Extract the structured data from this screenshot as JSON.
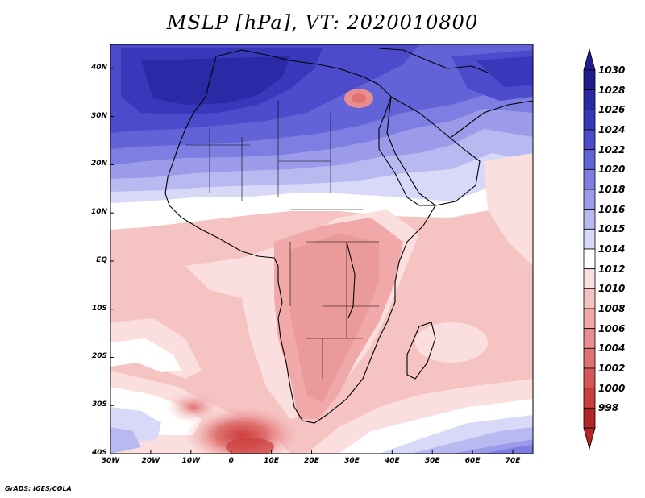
{
  "title": "MSLP [hPa], VT: 2020010800",
  "credit": "GrADS: IGES/COLA",
  "map": {
    "x_ticks": [
      "30W",
      "20W",
      "10W",
      "0",
      "10E",
      "20E",
      "30E",
      "40E",
      "50E",
      "60E",
      "70E"
    ],
    "y_ticks": [
      "40N",
      "30N",
      "20N",
      "10N",
      "EQ",
      "10S",
      "20S",
      "30S",
      "40S"
    ],
    "extent": {
      "lon": [
        -30,
        75
      ],
      "lat": [
        -40,
        45
      ]
    }
  },
  "colorbar": {
    "levels": [
      {
        "label": "1030",
        "color": "#1e1e8c"
      },
      {
        "label": "1028",
        "color": "#2a2aa6"
      },
      {
        "label": "1026",
        "color": "#3838bb"
      },
      {
        "label": "1024",
        "color": "#4b4bcc"
      },
      {
        "label": "1022",
        "color": "#6363d8"
      },
      {
        "label": "1020",
        "color": "#7d7de2"
      },
      {
        "label": "1018",
        "color": "#9b9bea"
      },
      {
        "label": "1016",
        "color": "#b9b9f2"
      },
      {
        "label": "1015",
        "color": "#d8d8f8"
      },
      {
        "label": "1014",
        "color": "#ffffff"
      },
      {
        "label": "1012",
        "color": "#fbdede"
      },
      {
        "label": "1010",
        "color": "#f6c3c3"
      },
      {
        "label": "1008",
        "color": "#f0a8a8"
      },
      {
        "label": "1006",
        "color": "#e88e8e"
      },
      {
        "label": "1004",
        "color": "#e07272"
      },
      {
        "label": "1002",
        "color": "#d75757"
      },
      {
        "label": "1000",
        "color": "#cc3d3d"
      },
      {
        "label": "998",
        "color": "#b62525"
      }
    ],
    "top_arrow_color": "#1e1e8c",
    "bottom_arrow_color": "#b62525"
  }
}
